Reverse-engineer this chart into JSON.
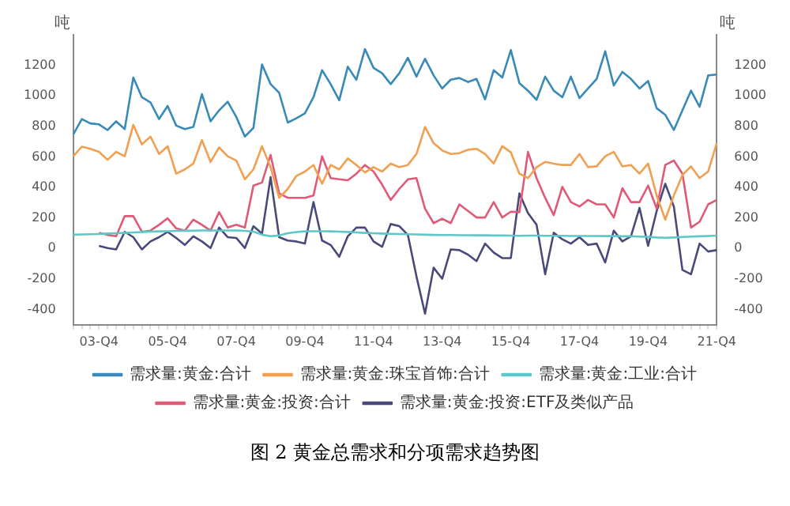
{
  "chart_data": {
    "type": "line",
    "title": "图 2 黄金总需求和分项需求趋势图",
    "ylabel": "吨",
    "y2label": "吨",
    "categories": [
      null,
      null,
      null,
      "03-Q4",
      null,
      null,
      null,
      null,
      null,
      null,
      null,
      "05-Q4",
      null,
      null,
      null,
      null,
      null,
      null,
      null,
      "07-Q4",
      null,
      null,
      null,
      null,
      null,
      null,
      null,
      "09-Q4",
      null,
      null,
      null,
      null,
      null,
      null,
      null,
      "11-Q4",
      null,
      null,
      null,
      null,
      null,
      null,
      null,
      "13-Q4",
      null,
      null,
      null,
      null,
      null,
      null,
      null,
      "15-Q4",
      null,
      null,
      null,
      null,
      null,
      null,
      null,
      "17-Q4",
      null,
      null,
      null,
      null,
      null,
      null,
      null,
      "19-Q4",
      null,
      null,
      null,
      null,
      null,
      null,
      null,
      "21-Q4"
    ],
    "series": [
      {
        "name": "需求量:黄金:合计",
        "color": "#3a8ab8",
        "values": [
          747,
          848,
          819,
          813,
          776,
          833,
          782,
          1120,
          991,
          957,
          848,
          934,
          805,
          782,
          796,
          1011,
          833,
          905,
          962,
          862,
          733,
          790,
          1206,
          1077,
          1020,
          825,
          853,
          885,
          991,
          1168,
          1077,
          971,
          1191,
          1105,
          1306,
          1183,
          1148,
          1077,
          1148,
          1249,
          1126,
          1243,
          1134,
          1048,
          1106,
          1117,
          1091,
          1111,
          977,
          1168,
          1120,
          1300,
          1083,
          1034,
          974,
          1126,
          1034,
          991,
          1126,
          985,
          1048,
          1111,
          1292,
          1068,
          1157,
          1111,
          1048,
          1097,
          919,
          876,
          776,
          905,
          1034,
          928,
          1134,
          1140
        ]
      },
      {
        "name": "需求量:黄金:珠宝首饰:合计",
        "color": "#f0a050",
        "values": [
          604,
          667,
          653,
          633,
          581,
          633,
          604,
          810,
          682,
          733,
          619,
          670,
          490,
          518,
          556,
          710,
          567,
          662,
          604,
          576,
          453,
          518,
          670,
          533,
          332,
          390,
          475,
          504,
          547,
          424,
          547,
          518,
          590,
          547,
          498,
          533,
          504,
          556,
          533,
          547,
          619,
          796,
          690,
          642,
          619,
          624,
          647,
          653,
          619,
          556,
          670,
          630,
          490,
          461,
          533,
          567,
          556,
          547,
          547,
          619,
          533,
          538,
          604,
          633,
          538,
          547,
          490,
          556,
          347,
          189,
          347,
          481,
          538,
          461,
          504,
          690
        ]
      },
      {
        "name": "需求量:黄金:工业:合计",
        "color": "#5ec8c8",
        "values": [
          90,
          92,
          93,
          95,
          98,
          100,
          102,
          105,
          108,
          110,
          112,
          113,
          115,
          116,
          117,
          118,
          118,
          117,
          118,
          118,
          115,
          110,
          90,
          80,
          85,
          100,
          108,
          112,
          113,
          113,
          112,
          110,
          108,
          105,
          102,
          100,
          98,
          96,
          95,
          93,
          92,
          90,
          89,
          88,
          88,
          87,
          87,
          86,
          86,
          85,
          85,
          84,
          83,
          84,
          84,
          83,
          83,
          83,
          82,
          82,
          82,
          82,
          81,
          81,
          80,
          80,
          78,
          76,
          72,
          70,
          72,
          75,
          78,
          80,
          82,
          84
        ]
      },
      {
        "name": "需求量:黄金:投资:合计",
        "color": "#e05a78",
        "values": [
          null,
          null,
          null,
          103,
          89,
          80,
          212,
          212,
          109,
          117,
          155,
          198,
          132,
          117,
          189,
          155,
          117,
          238,
          137,
          155,
          137,
          412,
          432,
          613,
          361,
          332,
          332,
          332,
          347,
          604,
          461,
          453,
          447,
          490,
          547,
          504,
          418,
          318,
          390,
          453,
          461,
          261,
          166,
          195,
          166,
          289,
          246,
          203,
          203,
          304,
          203,
          241,
          238,
          633,
          461,
          332,
          218,
          404,
          304,
          275,
          318,
          289,
          289,
          203,
          395,
          304,
          304,
          412,
          261,
          547,
          576,
          490,
          137,
          175,
          289,
          318
        ]
      },
      {
        "name": "需求量:黄金:投资:ETF及类似产品",
        "color": "#4a4a7a",
        "values": [
          null,
          null,
          null,
          17,
          3,
          -6,
          109,
          74,
          -6,
          46,
          74,
          109,
          69,
          23,
          80,
          46,
          3,
          137,
          74,
          69,
          3,
          146,
          97,
          467,
          74,
          52,
          46,
          32,
          304,
          52,
          23,
          -54,
          80,
          137,
          137,
          46,
          11,
          160,
          146,
          89,
          -183,
          -427,
          -126,
          -198,
          -6,
          -11,
          -40,
          -83,
          32,
          -26,
          -63,
          -63,
          361,
          232,
          155,
          -169,
          103,
          60,
          32,
          74,
          23,
          32,
          -92,
          117,
          46,
          80,
          266,
          17,
          246,
          424,
          275,
          -140,
          -169,
          32,
          -20,
          -11
        ]
      }
    ],
    "ylim": [
      -500,
      1400
    ],
    "yticks": [
      -400,
      -200,
      0,
      200,
      400,
      600,
      800,
      1000,
      1200
    ],
    "y2lim": [
      -500,
      1400
    ],
    "y2ticks": [
      -400,
      -200,
      0,
      200,
      400,
      600,
      800,
      1000,
      1200
    ],
    "grid": false,
    "legend": "bottom",
    "marker": "none",
    "line_style": "solid"
  }
}
